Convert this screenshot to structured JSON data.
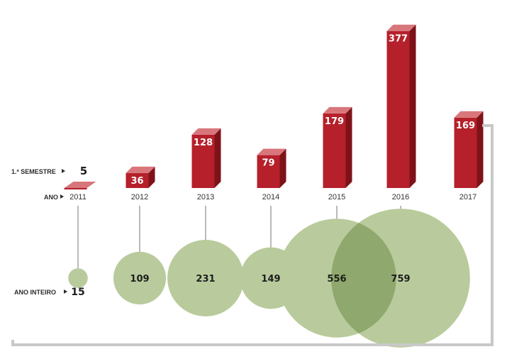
{
  "labels": {
    "semester": "1.º SEMESTRE",
    "year": "ANO",
    "full_year": "ANO INTEIRO"
  },
  "colors": {
    "bar_front": "#b5202a",
    "bar_side": "#7e1219",
    "bar_top": "#d8767b",
    "bubble": "#b9cb9c",
    "bubble_overlap": "#8fa86e",
    "connector": "#8c8c8c",
    "bracket": "#c8c8c8"
  },
  "chart_data": {
    "type": "bar",
    "categories": [
      "2011",
      "2012",
      "2013",
      "2014",
      "2015",
      "2016",
      "2017"
    ],
    "series": [
      {
        "name": "1.º SEMESTRE",
        "type": "bar",
        "values": [
          5,
          36,
          128,
          79,
          179,
          377,
          169
        ]
      },
      {
        "name": "ANO INTEIRO",
        "type": "bubble",
        "values": [
          15,
          109,
          231,
          149,
          556,
          759,
          null
        ]
      }
    ],
    "value_labels": {
      "semester": [
        "5",
        "36",
        "128",
        "79",
        "179",
        "377",
        "169"
      ],
      "full_year": [
        "15",
        "109",
        "231",
        "149",
        "556",
        "759"
      ]
    },
    "grid": false,
    "legend": "none"
  }
}
